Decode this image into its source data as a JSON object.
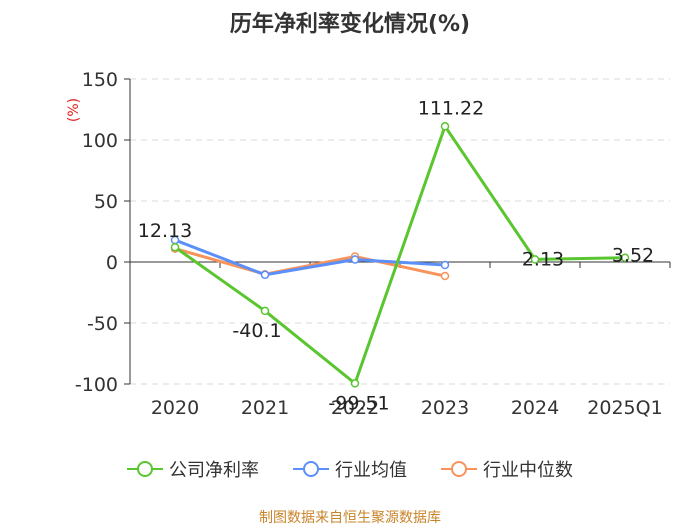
{
  "chart_data": {
    "type": "line",
    "title": "历年净利率变化情况(%)",
    "ylabel": "(%)",
    "categories": [
      "2020",
      "2021",
      "2022",
      "2023",
      "2024",
      "2025Q1"
    ],
    "ylim": [
      -100,
      150
    ],
    "yticks": [
      150,
      100,
      50,
      0,
      -50,
      -100
    ],
    "grid": true,
    "legend_position": "bottom",
    "series": [
      {
        "name": "公司净利率",
        "color": "#5ac62f",
        "values": [
          12.13,
          -40.1,
          -99.51,
          111.22,
          2.13,
          3.52
        ],
        "labels": [
          "12.13",
          "-40.1",
          "-99.51",
          "111.22",
          "2.13",
          "3.52"
        ]
      },
      {
        "name": "行业均值",
        "color": "#5b8ff9",
        "values": [
          18.0,
          -10.5,
          2.0,
          -2.5,
          null,
          null
        ]
      },
      {
        "name": "行业中位数",
        "color": "#f7935b",
        "values": [
          11.0,
          -10.0,
          4.5,
          -11.5,
          null,
          null
        ]
      }
    ]
  },
  "source_text": "制图数据来自恒生聚源数据库"
}
